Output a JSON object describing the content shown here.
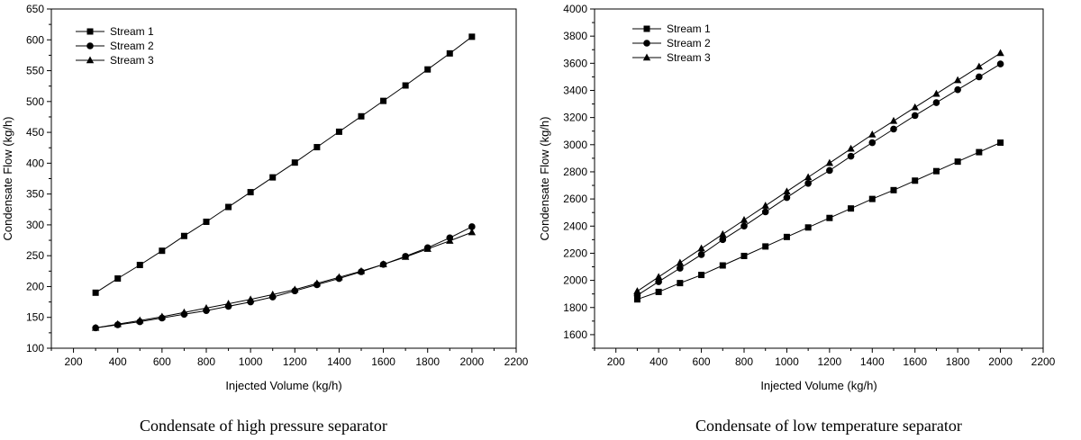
{
  "chart_data": [
    {
      "type": "line",
      "title": "",
      "caption": "Condensate of high pressure separator",
      "xlabel": "Injected Volume (kg/h)",
      "ylabel": "Condensate Flow (kg/h)",
      "xlim": [
        100,
        2200
      ],
      "ylim": [
        100,
        650
      ],
      "xticks": [
        200,
        400,
        600,
        800,
        1000,
        1200,
        1400,
        1600,
        1800,
        2000,
        2200
      ],
      "yticks": [
        100,
        150,
        200,
        250,
        300,
        350,
        400,
        450,
        500,
        550,
        600,
        650
      ],
      "grid": false,
      "legend": "top-left",
      "x": [
        300,
        400,
        500,
        600,
        700,
        800,
        900,
        1000,
        1100,
        1200,
        1300,
        1400,
        1500,
        1600,
        1700,
        1800,
        1900,
        2000
      ],
      "series": [
        {
          "name": "Stream 1",
          "marker": "square",
          "values": [
            190,
            213,
            235,
            258,
            282,
            305,
            329,
            353,
            377,
            401,
            426,
            451,
            476,
            501,
            526,
            552,
            578,
            605
          ]
        },
        {
          "name": "Stream 2",
          "marker": "circle",
          "values": [
            133,
            138,
            143,
            149,
            155,
            161,
            168,
            175,
            183,
            193,
            203,
            213,
            224,
            236,
            249,
            263,
            279,
            297
          ]
        },
        {
          "name": "Stream 3",
          "marker": "triangle",
          "values": [
            133,
            139,
            145,
            151,
            158,
            165,
            172,
            179,
            187,
            195,
            205,
            215,
            225,
            236,
            248,
            261,
            274,
            288
          ]
        }
      ]
    },
    {
      "type": "line",
      "title": "",
      "caption": "Condensate of low temperature separator",
      "xlabel": "Injected Volume (kg/h)",
      "ylabel": "Condensate Flow (kg/h)",
      "xlim": [
        100,
        2200
      ],
      "ylim": [
        1500,
        4000
      ],
      "xticks": [
        200,
        400,
        600,
        800,
        1000,
        1200,
        1400,
        1600,
        1800,
        2000,
        2200
      ],
      "yticks": [
        1600,
        1800,
        2000,
        2200,
        2400,
        2600,
        2800,
        3000,
        3200,
        3400,
        3600,
        3800,
        4000
      ],
      "grid": false,
      "legend": "top-left",
      "x": [
        300,
        400,
        500,
        600,
        700,
        800,
        900,
        1000,
        1100,
        1200,
        1300,
        1400,
        1500,
        1600,
        1700,
        1800,
        1900,
        2000
      ],
      "series": [
        {
          "name": "Stream 1",
          "marker": "square",
          "values": [
            1860,
            1915,
            1980,
            2040,
            2110,
            2180,
            2250,
            2320,
            2390,
            2460,
            2530,
            2600,
            2665,
            2735,
            2805,
            2875,
            2945,
            3015
          ]
        },
        {
          "name": "Stream 2",
          "marker": "circle",
          "values": [
            1890,
            1990,
            2090,
            2190,
            2300,
            2400,
            2505,
            2610,
            2715,
            2810,
            2915,
            3015,
            3115,
            3215,
            3310,
            3405,
            3500,
            3595
          ]
        },
        {
          "name": "Stream 3",
          "marker": "triangle",
          "values": [
            1920,
            2025,
            2130,
            2235,
            2340,
            2445,
            2550,
            2655,
            2760,
            2865,
            2970,
            3075,
            3175,
            3275,
            3375,
            3475,
            3575,
            3675
          ]
        }
      ]
    }
  ]
}
